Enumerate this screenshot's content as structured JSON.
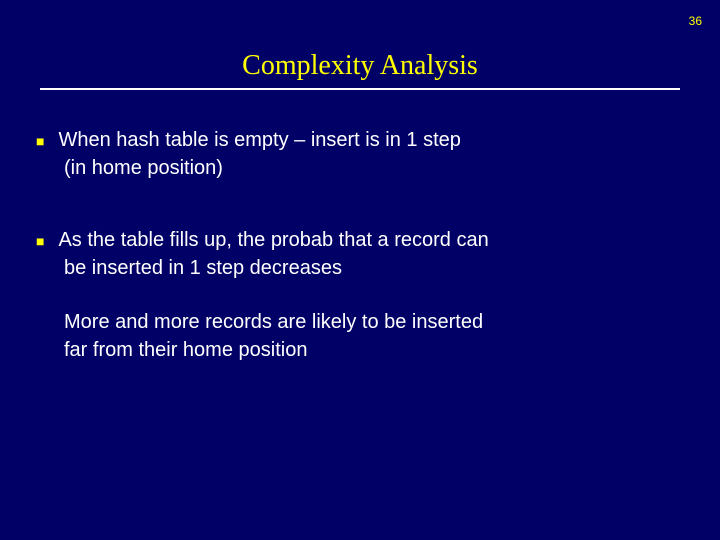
{
  "colors": {
    "background": "#000066",
    "title": "#ffff00",
    "body_text": "#ffffff",
    "page_number": "#ffff00",
    "bullet": "#ffff00",
    "hr": "#ffffff"
  },
  "page_number": "36",
  "title": "Complexity Analysis",
  "bullets": [
    {
      "line1": "When hash table is empty – insert is in 1 step",
      "line2": "(in home position)"
    },
    {
      "line1": "As the table fills up, the probab that a record can",
      "line2": "be inserted in 1 step decreases",
      "extra1": "More and more records are likely to be inserted",
      "extra2": "far from their home position"
    }
  ]
}
